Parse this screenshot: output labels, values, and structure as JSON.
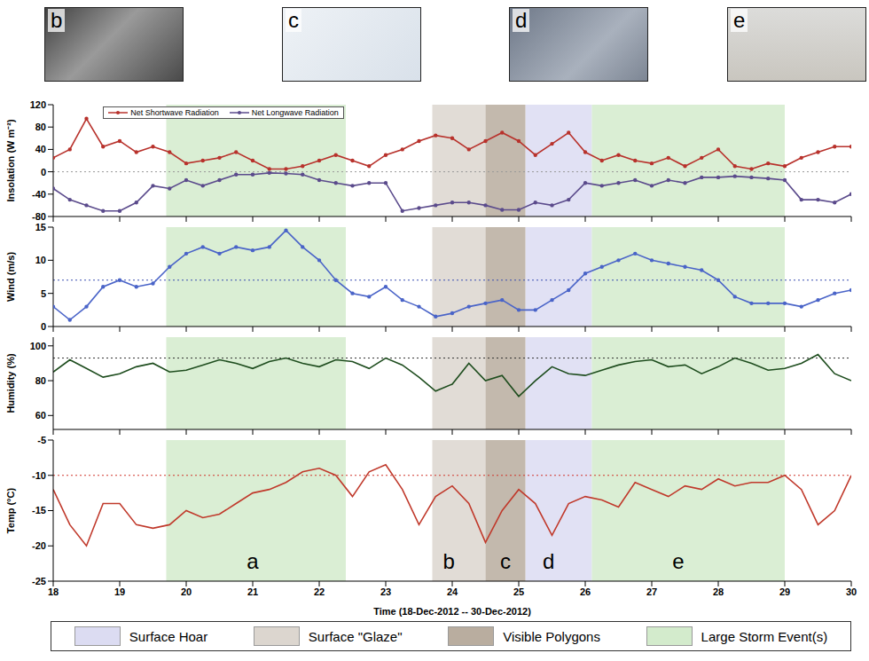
{
  "photo_labels": [
    "b",
    "c",
    "d",
    "e"
  ],
  "regions": [
    {
      "name": "Surface Hoar",
      "color": "#dcdcf2",
      "start": 25.1,
      "end": 26.1
    },
    {
      "name": "Surface \"Glaze\"",
      "color": "#dcd6cf",
      "start": 23.7,
      "end": 24.5
    },
    {
      "name": "Visible Polygons",
      "color": "#b9ad9f",
      "start": 24.5,
      "end": 25.1
    },
    {
      "name": "Large Storm Event(s)",
      "color": "#d3ebcc",
      "start": 19.7,
      "end": 22.4
    },
    {
      "name": "Large Storm Event(s)",
      "color": "#d3ebcc",
      "start": 26.1,
      "end": 29.0
    }
  ],
  "chart_data": [
    {
      "type": "line",
      "y_label": "Insolation (W m⁻²)",
      "tick_labels": "y",
      "legend": "upper left",
      "grid": false,
      "x": [
        18,
        18.25,
        18.5,
        18.75,
        19,
        19.25,
        19.5,
        19.75,
        20,
        20.25,
        20.5,
        20.75,
        21,
        21.25,
        21.5,
        21.75,
        22,
        22.25,
        22.5,
        22.75,
        23,
        23.25,
        23.5,
        23.75,
        24,
        24.25,
        24.5,
        24.75,
        25,
        25.25,
        25.5,
        25.75,
        26,
        26.25,
        26.5,
        26.75,
        27,
        27.25,
        27.5,
        27.75,
        28,
        28.25,
        28.5,
        28.75,
        29,
        29.25,
        29.5,
        29.75,
        30
      ],
      "xlim": [
        18,
        30
      ],
      "xticks": [
        18,
        19,
        20,
        21,
        22,
        23,
        24,
        25,
        26,
        27,
        28,
        29,
        30
      ],
      "ylim": [
        -80,
        120
      ],
      "yticks": [
        -80,
        -40,
        0,
        40,
        80,
        120
      ],
      "threshold": {
        "value": 0,
        "color": "#999999"
      },
      "series": [
        {
          "name": "Net Shortwave Radiation",
          "color": "#b8322c",
          "marker": "circle",
          "line_style": "solid",
          "values": [
            25,
            40,
            95,
            45,
            55,
            35,
            45,
            35,
            15,
            20,
            25,
            35,
            20,
            5,
            5,
            10,
            20,
            30,
            20,
            10,
            30,
            40,
            55,
            65,
            60,
            40,
            55,
            70,
            55,
            30,
            50,
            70,
            35,
            20,
            30,
            20,
            15,
            25,
            10,
            25,
            40,
            10,
            5,
            15,
            10,
            25,
            35,
            45,
            45
          ]
        },
        {
          "name": "Net Longwave Radiation",
          "color": "#5b4b8c",
          "marker": "circle",
          "line_style": "solid",
          "values": [
            -30,
            -50,
            -60,
            -70,
            -70,
            -55,
            -25,
            -30,
            -15,
            -25,
            -15,
            -5,
            -5,
            -2,
            -3,
            -5,
            -15,
            -20,
            -25,
            -20,
            -20,
            -70,
            -65,
            -60,
            -55,
            -55,
            -60,
            -68,
            -68,
            -55,
            -60,
            -50,
            -20,
            -25,
            -20,
            -15,
            -25,
            -15,
            -20,
            -10,
            -10,
            -8,
            -10,
            -12,
            -15,
            -50,
            -50,
            -55,
            -40
          ]
        }
      ]
    },
    {
      "type": "line",
      "y_label": "Wind (m/s)",
      "tick_labels": "y",
      "grid": false,
      "x": [
        18,
        18.25,
        18.5,
        18.75,
        19,
        19.25,
        19.5,
        19.75,
        20,
        20.25,
        20.5,
        20.75,
        21,
        21.25,
        21.5,
        21.75,
        22,
        22.25,
        22.5,
        22.75,
        23,
        23.25,
        23.5,
        23.75,
        24,
        24.25,
        24.5,
        24.75,
        25,
        25.25,
        25.5,
        25.75,
        26,
        26.25,
        26.5,
        26.75,
        27,
        27.25,
        27.5,
        27.75,
        28,
        28.25,
        28.5,
        28.75,
        29,
        29.25,
        29.5,
        29.75,
        30
      ],
      "xlim": [
        18,
        30
      ],
      "xticks": [
        18,
        19,
        20,
        21,
        22,
        23,
        24,
        25,
        26,
        27,
        28,
        29,
        30
      ],
      "ylim": [
        0,
        15
      ],
      "yticks": [
        0,
        5,
        10,
        15
      ],
      "threshold": {
        "value": 7,
        "color": "#3a4fb0"
      },
      "series": [
        {
          "name": "Wind",
          "color": "#4a64c8",
          "marker": "circle",
          "line_style": "solid",
          "values": [
            3,
            1,
            3,
            6,
            7,
            6,
            6.5,
            9,
            11,
            12,
            11,
            12,
            11.5,
            12,
            14.5,
            12,
            10,
            7,
            5,
            4.5,
            6,
            4,
            3,
            1.5,
            2,
            3,
            3.5,
            4,
            2.5,
            2.5,
            4,
            5.5,
            8,
            9,
            10,
            11,
            10,
            9.5,
            9,
            8.5,
            7,
            4.5,
            3.5,
            3.5,
            3.5,
            3,
            4,
            5,
            5.5
          ]
        }
      ]
    },
    {
      "type": "line",
      "y_label": "Humidity (%)",
      "tick_labels": "y",
      "grid": false,
      "x": [
        18,
        18.25,
        18.5,
        18.75,
        19,
        19.25,
        19.5,
        19.75,
        20,
        20.25,
        20.5,
        20.75,
        21,
        21.25,
        21.5,
        21.75,
        22,
        22.25,
        22.5,
        22.75,
        23,
        23.25,
        23.5,
        23.75,
        24,
        24.25,
        24.5,
        24.75,
        25,
        25.25,
        25.5,
        25.75,
        26,
        26.25,
        26.5,
        26.75,
        27,
        27.25,
        27.5,
        27.75,
        28,
        28.25,
        28.5,
        28.75,
        29,
        29.25,
        29.5,
        29.75,
        30
      ],
      "xlim": [
        18,
        30
      ],
      "xticks": [
        18,
        19,
        20,
        21,
        22,
        23,
        24,
        25,
        26,
        27,
        28,
        29,
        30
      ],
      "ylim": [
        52,
        105
      ],
      "yticks": [
        60,
        80,
        100
      ],
      "threshold": {
        "value": 93,
        "color": "#333333"
      },
      "series": [
        {
          "name": "Humidity",
          "color": "#1e4d1e",
          "marker": "none",
          "line_style": "solid",
          "values": [
            85,
            92,
            87,
            82,
            84,
            88,
            90,
            85,
            86,
            89,
            92,
            90,
            87,
            91,
            93,
            90,
            88,
            92,
            91,
            87,
            93,
            89,
            82,
            74,
            78,
            90,
            80,
            83,
            71,
            80,
            88,
            84,
            83,
            86,
            89,
            91,
            92,
            88,
            89,
            84,
            88,
            93,
            90,
            86,
            87,
            90,
            95,
            84,
            80
          ]
        }
      ]
    },
    {
      "type": "line",
      "y_label": "Temp (°C)",
      "x_label": "Time (18-Dec-2012 -- 30-Dec-2012)",
      "grid": false,
      "x": [
        18,
        18.25,
        18.5,
        18.75,
        19,
        19.25,
        19.5,
        19.75,
        20,
        20.25,
        20.5,
        20.75,
        21,
        21.25,
        21.5,
        21.75,
        22,
        22.25,
        22.5,
        22.75,
        23,
        23.25,
        23.5,
        23.75,
        24,
        24.25,
        24.5,
        24.75,
        25,
        25.25,
        25.5,
        25.75,
        26,
        26.25,
        26.5,
        26.75,
        27,
        27.25,
        27.5,
        27.75,
        28,
        28.25,
        28.5,
        28.75,
        29,
        29.25,
        29.5,
        29.75,
        30
      ],
      "xlim": [
        18,
        30
      ],
      "xticks": [
        18,
        19,
        20,
        21,
        22,
        23,
        24,
        25,
        26,
        27,
        28,
        29,
        30
      ],
      "ylim": [
        -25,
        -5
      ],
      "yticks": [
        -25,
        -20,
        -15,
        -10,
        -5
      ],
      "threshold": {
        "value": -10,
        "color": "#d0362c"
      },
      "annotations": [
        {
          "text": "a",
          "x": 21,
          "y": -22.5
        },
        {
          "text": "b",
          "x": 23.95,
          "y": -22.5
        },
        {
          "text": "c",
          "x": 24.8,
          "y": -22.5
        },
        {
          "text": "d",
          "x": 25.45,
          "y": -22.5
        },
        {
          "text": "e",
          "x": 27.4,
          "y": -22.5
        }
      ],
      "series": [
        {
          "name": "Temp",
          "color": "#c0392b",
          "marker": "none",
          "line_style": "solid",
          "values": [
            -12,
            -17,
            -20,
            -14,
            -14,
            -17,
            -17.5,
            -17,
            -15,
            -16,
            -15.5,
            -14,
            -12.5,
            -12,
            -11,
            -9.5,
            -9,
            -10,
            -13,
            -9.5,
            -8.5,
            -12,
            -17,
            -13,
            -11.5,
            -14,
            -19.5,
            -15,
            -12,
            -14,
            -18.5,
            -14,
            -13,
            -13.5,
            -14.5,
            -11,
            -12,
            -13,
            -11.5,
            -12,
            -10.5,
            -11.5,
            -11,
            -11,
            -10,
            -12,
            -17,
            -15,
            -10
          ]
        }
      ]
    }
  ]
}
